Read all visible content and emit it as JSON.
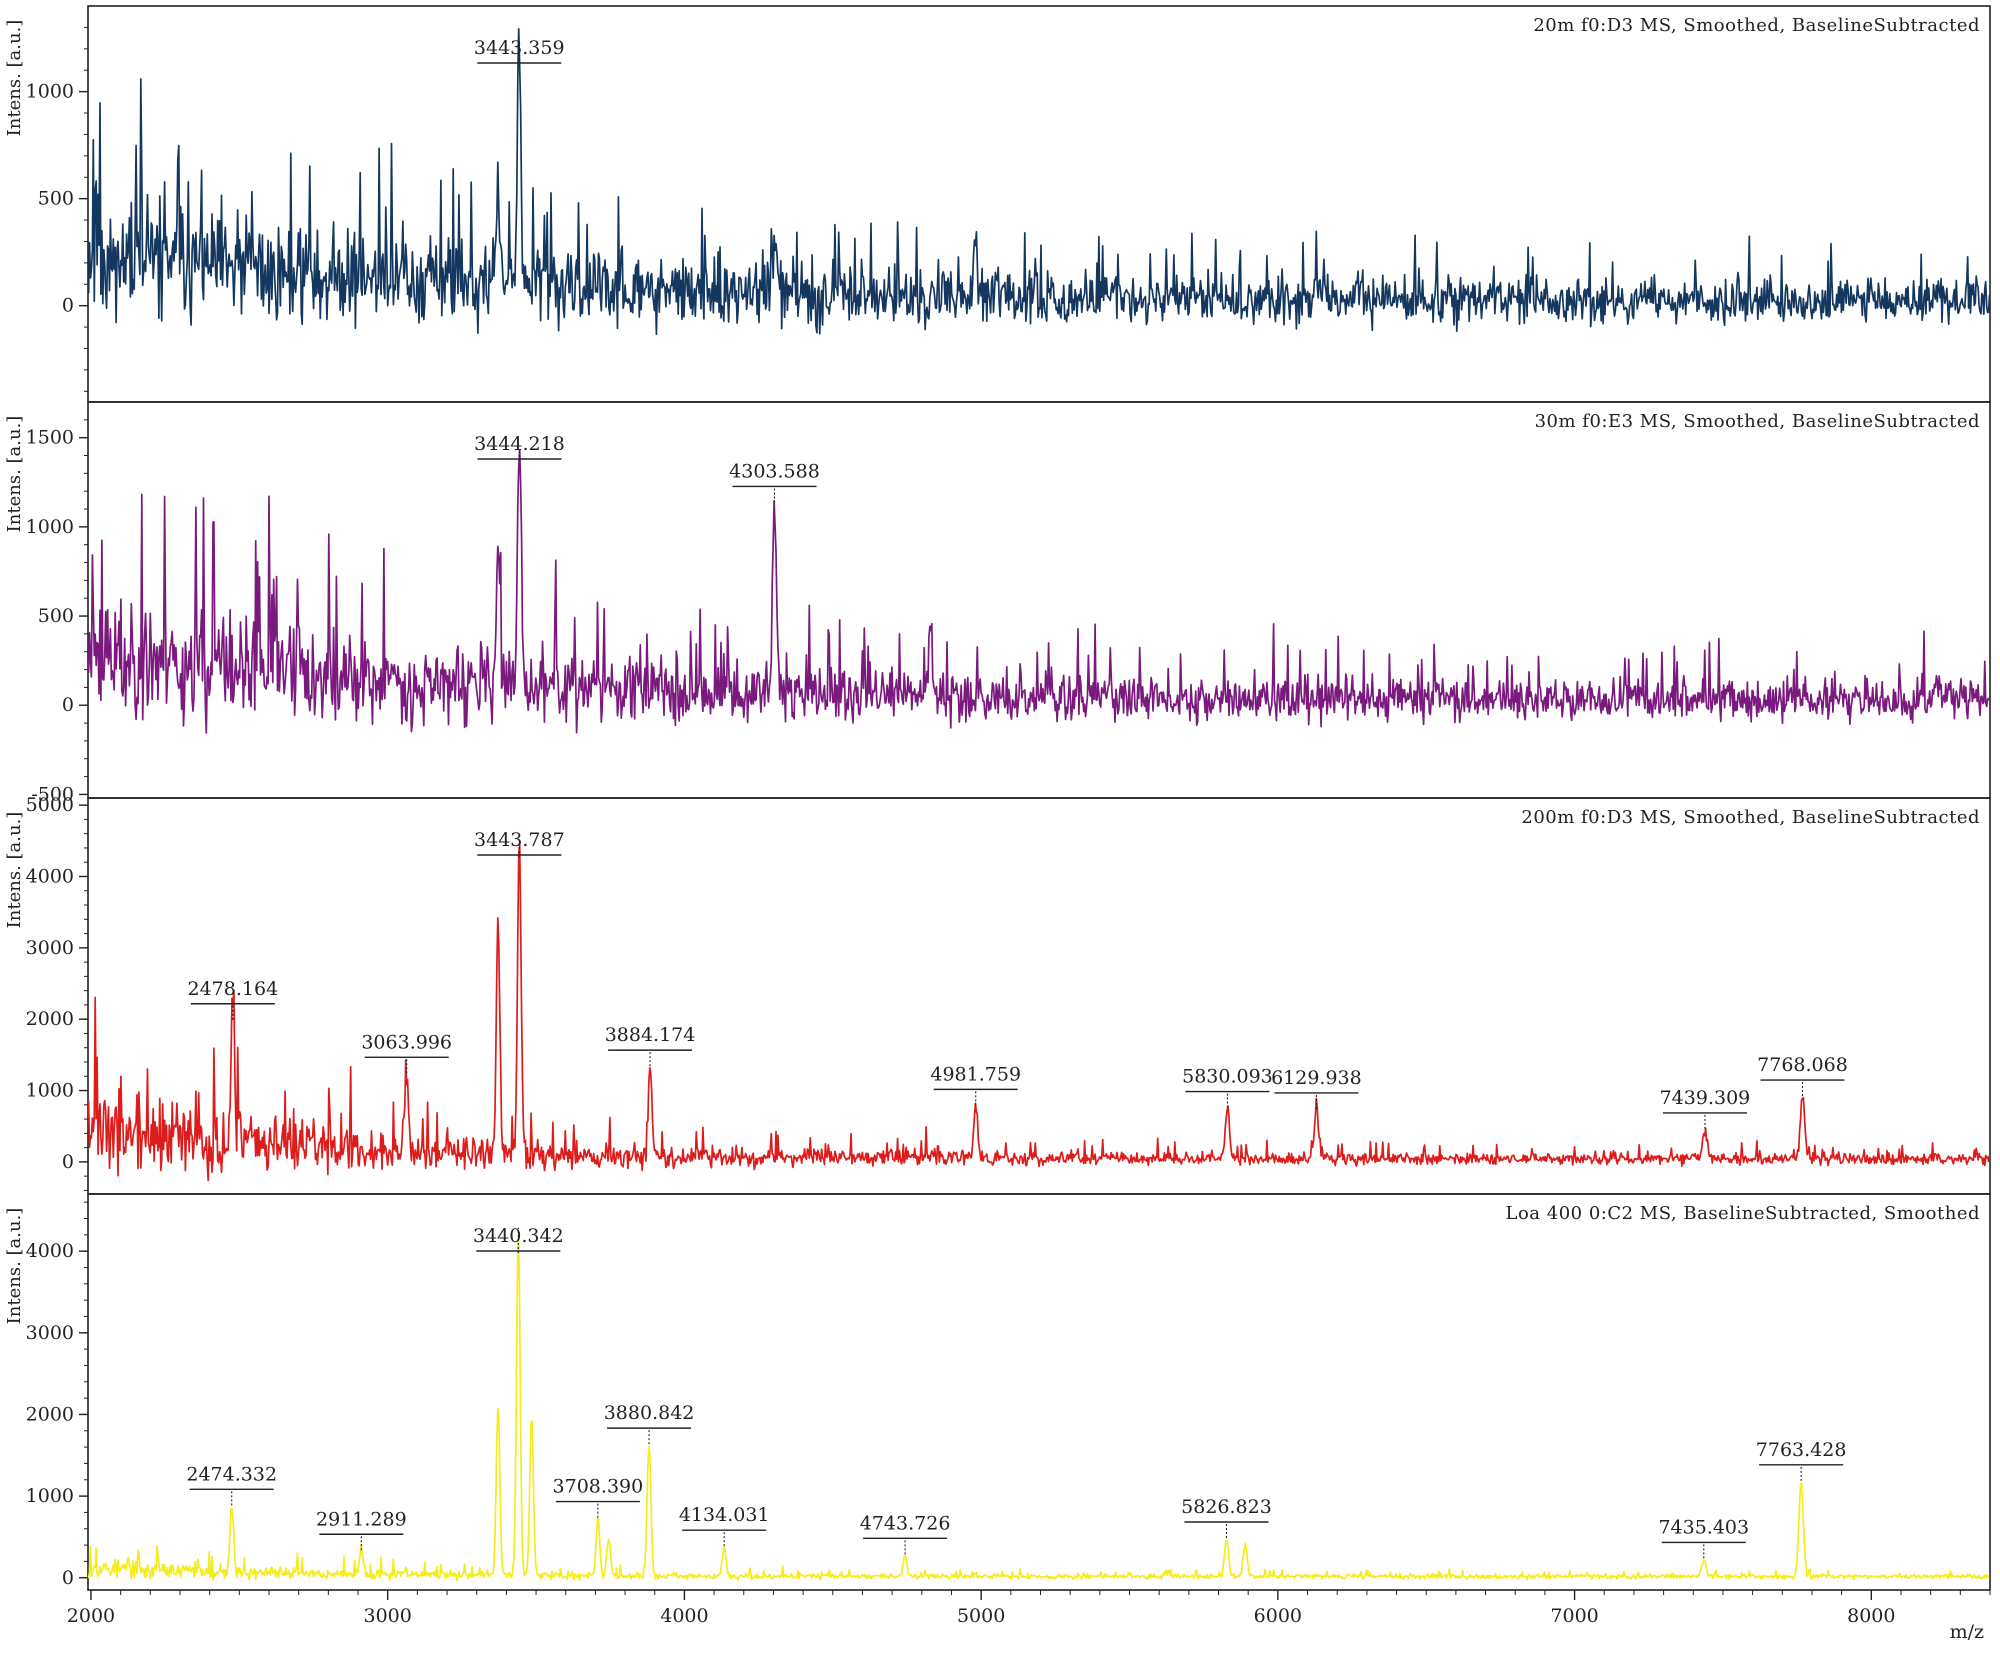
{
  "xlabel": "m/z",
  "xlim": [
    1990,
    8400
  ],
  "x_ticks": [
    2000,
    3000,
    4000,
    5000,
    6000,
    7000,
    8000
  ],
  "colors": {
    "axis": "#222222",
    "peak_line": "#222222"
  },
  "chart_data": [
    {
      "type": "line",
      "title": "20m f0:D3 MS, Smoothed, BaselineSubtracted",
      "ylabel": "Intens. [a.u.]",
      "color": "#13375f",
      "ylim": [
        -450,
        1400
      ],
      "yticks": [
        0,
        500,
        1000
      ],
      "noise": {
        "start": 380,
        "end": 120,
        "tau": 1500,
        "baseline_start": 250,
        "baseline_end": 20,
        "seed": 11
      },
      "peaks": [
        {
          "x": 3372,
          "y": 560
        },
        {
          "x": 3443.359,
          "y": 1170,
          "label": "3443.359"
        },
        {
          "x": 4305,
          "y": 260
        },
        {
          "x": 4980,
          "y": 290
        }
      ]
    },
    {
      "type": "line",
      "title": "30m f0:E3 MS, Smoothed, BaselineSubtracted",
      "ylabel": "Intens. [a.u.]",
      "color": "#7a1a7e",
      "ylim": [
        -520,
        1700
      ],
      "yticks": [
        -500,
        0,
        500,
        1000,
        1500
      ],
      "noise": {
        "start": 460,
        "end": 130,
        "tau": 1400,
        "baseline_start": 300,
        "baseline_end": 30,
        "seed": 23
      },
      "peaks": [
        {
          "x": 3372,
          "y": 780
        },
        {
          "x": 3444.218,
          "y": 1420,
          "label": "3444.218"
        },
        {
          "x": 4303.588,
          "y": 1120,
          "label": "4303.588"
        },
        {
          "x": 4830,
          "y": 370
        }
      ]
    },
    {
      "type": "line",
      "title": "200m f0:D3 MS, Smoothed, BaselineSubtracted",
      "ylabel": "Intens. [a.u.]",
      "color": "#dd1c1c",
      "ylim": [
        -450,
        5100
      ],
      "yticks": [
        0,
        1000,
        2000,
        3000,
        4000,
        5000
      ],
      "noise": {
        "start": 800,
        "end": 90,
        "tau": 1000,
        "baseline_start": 450,
        "baseline_end": 40,
        "seed": 37
      },
      "peaks": [
        {
          "x": 2478.164,
          "y": 1950,
          "label": "2478.164"
        },
        {
          "x": 3063.996,
          "y": 1200,
          "label": "3063.996"
        },
        {
          "x": 3372,
          "y": 3250
        },
        {
          "x": 3443.787,
          "y": 4450,
          "label": "3443.787"
        },
        {
          "x": 3884.174,
          "y": 1300,
          "label": "3884.174"
        },
        {
          "x": 4981.759,
          "y": 750,
          "label": "4981.759"
        },
        {
          "x": 5830.093,
          "y": 720,
          "label": "5830.093"
        },
        {
          "x": 6129.938,
          "y": 700,
          "label": "6129.938"
        },
        {
          "x": 7439.309,
          "y": 420,
          "label": "7439.309"
        },
        {
          "x": 7768.068,
          "y": 880,
          "label": "7768.068"
        }
      ]
    },
    {
      "type": "line",
      "title": "Loa 400 0:C2 MS, BaselineSubtracted, Smoothed",
      "ylabel": "Intens. [a.u.]",
      "color": "#f5ec1c",
      "ylim": [
        -150,
        4700
      ],
      "yticks": [
        0,
        1000,
        2000,
        3000,
        4000
      ],
      "noise": {
        "start": 150,
        "end": 35,
        "tau": 900,
        "baseline_start": 120,
        "baseline_end": 15,
        "seed": 53
      },
      "peaks": [
        {
          "x": 2474.332,
          "y": 850,
          "label": "2474.332"
        },
        {
          "x": 2911.289,
          "y": 300,
          "label": "2911.289"
        },
        {
          "x": 3372,
          "y": 2080
        },
        {
          "x": 3440.342,
          "y": 4250,
          "label": "3440.342"
        },
        {
          "x": 3485,
          "y": 1950
        },
        {
          "x": 3708.39,
          "y": 700,
          "label": "3708.390"
        },
        {
          "x": 3745,
          "y": 450
        },
        {
          "x": 3880.842,
          "y": 1600,
          "label": "3880.842"
        },
        {
          "x": 4134.031,
          "y": 350,
          "label": "4134.031"
        },
        {
          "x": 4743.726,
          "y": 250,
          "label": "4743.726"
        },
        {
          "x": 5826.823,
          "y": 450,
          "label": "5826.823"
        },
        {
          "x": 5890,
          "y": 380
        },
        {
          "x": 7435.403,
          "y": 200,
          "label": "7435.403"
        },
        {
          "x": 7763.428,
          "y": 1150,
          "label": "7763.428"
        }
      ]
    }
  ]
}
